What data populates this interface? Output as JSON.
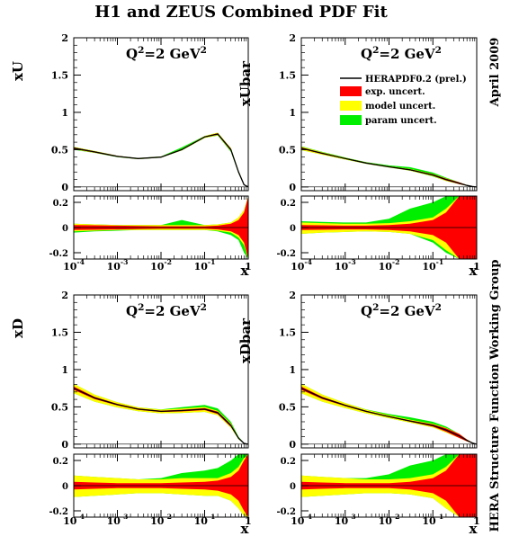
{
  "title": "H1 and ZEUS Combined PDF Fit",
  "side_date": "April 2009",
  "side_group": "HERA Structure Function Working Group",
  "legend": {
    "central": "HERAPDF0.2 (prel.)",
    "exp": "exp. uncert.",
    "model": "model uncert.",
    "param": "param uncert."
  },
  "colors": {
    "exp": "#ff0000",
    "model": "#ffff00",
    "param": "#00ee00",
    "central": "#000000"
  },
  "chart_data": [
    {
      "type": "area",
      "panel": "xU",
      "ylabel": "xU",
      "annotation": "Q²=2 GeV²",
      "xlabel": "x",
      "xscale": "log",
      "xlim": [
        0.0001,
        1
      ],
      "ylim": [
        -0.05,
        2
      ],
      "yticks": [
        "0",
        "0.5",
        "1",
        "1.5",
        "2"
      ],
      "xticks": [
        "10⁻⁴",
        "10⁻³",
        "10⁻²",
        "10⁻¹",
        "1"
      ],
      "x": [
        0.0001,
        0.0003,
        0.001,
        0.003,
        0.01,
        0.03,
        0.1,
        0.2,
        0.4,
        0.6,
        0.8,
        1
      ],
      "central": [
        0.52,
        0.47,
        0.41,
        0.38,
        0.4,
        0.5,
        0.67,
        0.71,
        0.5,
        0.2,
        0.03,
        0
      ],
      "ratio_ylim": [
        -0.25,
        0.25
      ],
      "ratio_yticks": [
        "0.2",
        "0",
        "-0.2"
      ],
      "bands": {
        "exp": [
          0.02,
          0.018,
          0.015,
          0.012,
          0.01,
          0.01,
          0.01,
          0.015,
          0.03,
          0.06,
          0.12,
          0.25
        ],
        "model_up": [
          0.03,
          0.025,
          0.02,
          0.02,
          0.02,
          0.02,
          0.02,
          0.025,
          0.04,
          0.08,
          0.14,
          0.25
        ],
        "model_dn": [
          0.03,
          0.025,
          0.02,
          0.02,
          0.02,
          0.02,
          0.02,
          0.025,
          0.04,
          0.08,
          0.14,
          0.25
        ],
        "param_up": [
          0.03,
          0.025,
          0.02,
          0.02,
          0.02,
          0.06,
          0.02,
          0.025,
          0.04,
          0.08,
          0.14,
          0.25
        ],
        "param_dn": [
          0.04,
          0.03,
          0.025,
          0.02,
          0.02,
          0.02,
          0.02,
          0.03,
          0.06,
          0.1,
          0.2,
          0.25
        ]
      }
    },
    {
      "type": "area",
      "panel": "xUbar",
      "ylabel": "xUbar",
      "annotation": "Q²=2 GeV²",
      "xlabel": "x",
      "xscale": "log",
      "xlim": [
        0.0001,
        1
      ],
      "ylim": [
        -0.05,
        2
      ],
      "yticks": [
        "0",
        "0.5",
        "1",
        "1.5",
        "2"
      ],
      "xticks": [
        "10⁻⁴",
        "10⁻³",
        "10⁻²",
        "10⁻¹",
        "1"
      ],
      "x": [
        0.0001,
        0.0003,
        0.001,
        0.003,
        0.01,
        0.03,
        0.1,
        0.2,
        0.4,
        0.6,
        0.8,
        1
      ],
      "central": [
        0.52,
        0.45,
        0.38,
        0.32,
        0.27,
        0.23,
        0.16,
        0.1,
        0.05,
        0.02,
        0.005,
        0
      ],
      "ratio_ylim": [
        -0.25,
        0.25
      ],
      "ratio_yticks": [
        "0.2",
        "0",
        "-0.2"
      ],
      "bands": {
        "exp": [
          0.02,
          0.018,
          0.015,
          0.015,
          0.02,
          0.03,
          0.06,
          0.12,
          0.25,
          0.25,
          0.25,
          0.25
        ],
        "model_up": [
          0.04,
          0.035,
          0.03,
          0.03,
          0.035,
          0.05,
          0.08,
          0.15,
          0.25,
          0.25,
          0.25,
          0.25
        ],
        "model_dn": [
          0.05,
          0.04,
          0.035,
          0.03,
          0.035,
          0.05,
          0.1,
          0.18,
          0.25,
          0.25,
          0.25,
          0.25
        ],
        "param_up": [
          0.05,
          0.045,
          0.04,
          0.04,
          0.07,
          0.15,
          0.2,
          0.25,
          0.25,
          0.25,
          0.25,
          0.25
        ],
        "param_dn": [
          0.05,
          0.04,
          0.035,
          0.03,
          0.035,
          0.05,
          0.12,
          0.2,
          0.25,
          0.25,
          0.25,
          0.25
        ]
      }
    },
    {
      "type": "area",
      "panel": "xD",
      "ylabel": "xD",
      "annotation": "Q²=2 GeV²",
      "xlabel": "x",
      "xscale": "log",
      "xlim": [
        0.0001,
        1
      ],
      "ylim": [
        -0.05,
        2
      ],
      "yticks": [
        "0",
        "0.5",
        "1",
        "1.5",
        "2"
      ],
      "xticks": [
        "10⁻⁴",
        "10⁻³",
        "10⁻²",
        "10⁻¹",
        "1"
      ],
      "x": [
        0.0001,
        0.0003,
        0.001,
        0.003,
        0.01,
        0.03,
        0.1,
        0.2,
        0.4,
        0.6,
        0.8,
        1
      ],
      "central": [
        0.75,
        0.62,
        0.53,
        0.47,
        0.44,
        0.45,
        0.47,
        0.42,
        0.25,
        0.08,
        0.01,
        0
      ],
      "ratio_ylim": [
        -0.25,
        0.25
      ],
      "ratio_yticks": [
        "0.2",
        "0",
        "-0.2"
      ],
      "bands": {
        "exp": [
          0.03,
          0.025,
          0.02,
          0.02,
          0.02,
          0.025,
          0.03,
          0.04,
          0.07,
          0.12,
          0.2,
          0.25
        ],
        "model_up": [
          0.08,
          0.07,
          0.06,
          0.05,
          0.05,
          0.06,
          0.06,
          0.06,
          0.1,
          0.15,
          0.22,
          0.25
        ],
        "model_dn": [
          0.09,
          0.08,
          0.07,
          0.06,
          0.06,
          0.07,
          0.08,
          0.08,
          0.12,
          0.18,
          0.24,
          0.25
        ],
        "param_up": [
          0.08,
          0.07,
          0.06,
          0.05,
          0.06,
          0.1,
          0.12,
          0.14,
          0.2,
          0.25,
          0.25,
          0.25
        ],
        "param_dn": [
          0.09,
          0.08,
          0.07,
          0.06,
          0.06,
          0.07,
          0.08,
          0.08,
          0.12,
          0.18,
          0.24,
          0.25
        ]
      }
    },
    {
      "type": "area",
      "panel": "xDbar",
      "ylabel": "xDbar",
      "annotation": "Q²=2 GeV²",
      "xlabel": "x",
      "xscale": "log",
      "xlim": [
        0.0001,
        1
      ],
      "ylim": [
        -0.05,
        2
      ],
      "yticks": [
        "0",
        "0.5",
        "1",
        "1.5",
        "2"
      ],
      "xticks": [
        "10⁻⁴",
        "10⁻³",
        "10⁻²",
        "10⁻¹",
        "1"
      ],
      "x": [
        0.0001,
        0.0003,
        0.001,
        0.003,
        0.01,
        0.03,
        0.1,
        0.2,
        0.4,
        0.6,
        0.8,
        1
      ],
      "central": [
        0.75,
        0.62,
        0.52,
        0.44,
        0.37,
        0.31,
        0.25,
        0.19,
        0.11,
        0.05,
        0.015,
        0
      ],
      "ratio_ylim": [
        -0.25,
        0.25
      ],
      "ratio_yticks": [
        "0.2",
        "0",
        "-0.2"
      ],
      "bands": {
        "exp": [
          0.03,
          0.025,
          0.02,
          0.02,
          0.02,
          0.03,
          0.06,
          0.12,
          0.25,
          0.25,
          0.25,
          0.25
        ],
        "model_up": [
          0.08,
          0.07,
          0.06,
          0.05,
          0.05,
          0.06,
          0.09,
          0.15,
          0.25,
          0.25,
          0.25,
          0.25
        ],
        "model_dn": [
          0.09,
          0.08,
          0.07,
          0.06,
          0.06,
          0.07,
          0.1,
          0.18,
          0.25,
          0.25,
          0.25,
          0.25
        ],
        "param_up": [
          0.08,
          0.07,
          0.06,
          0.06,
          0.09,
          0.16,
          0.2,
          0.25,
          0.25,
          0.25,
          0.25,
          0.25
        ],
        "param_dn": [
          0.09,
          0.08,
          0.07,
          0.06,
          0.06,
          0.07,
          0.1,
          0.18,
          0.25,
          0.25,
          0.25,
          0.25
        ]
      }
    }
  ]
}
